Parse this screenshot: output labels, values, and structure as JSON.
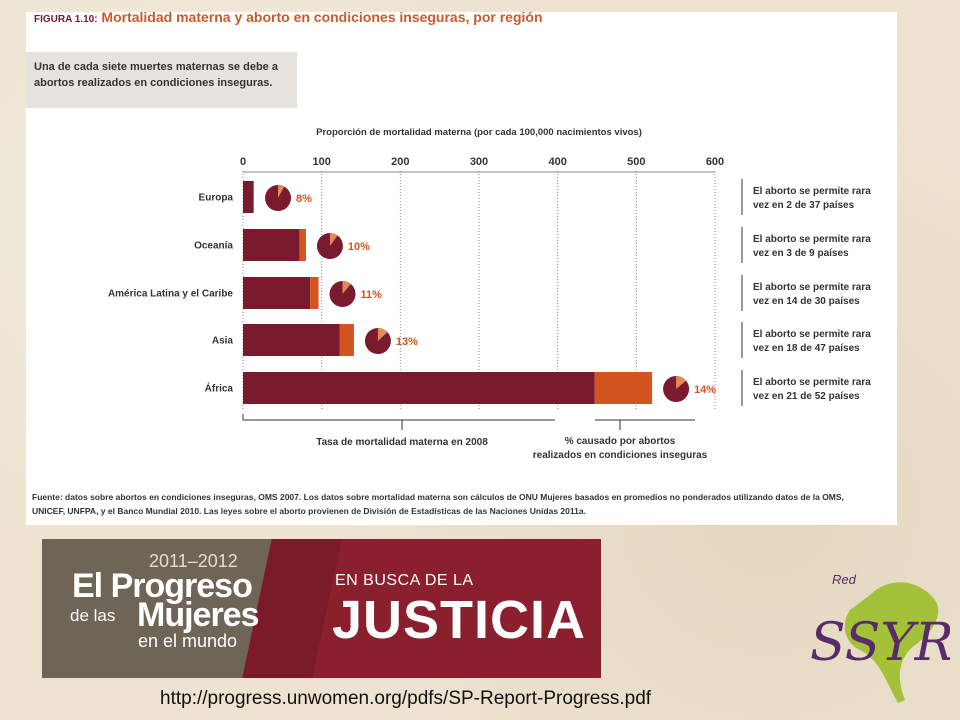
{
  "figure": {
    "number": "FIGURA 1.10:",
    "title": "Mortalidad materna y aborto en condiciones inseguras, por región",
    "subtitle": "Una de cada siete muertes maternas se debe a abortos realizados en condiciones inseguras.",
    "footnote": "Fuente: datos sobre abortos en condiciones inseguras, OMS 2007. Los datos sobre mortalidad materna son cálculos de ONU Mujeres basados en promedios no ponderados utilizando datos de la OMS, UNICEF, UNFPA, y el Banco Mundial 2010. Las leyes sobre el aborto provienen de División de Estadísticas de las Naciones Unidas 2011a."
  },
  "colors": {
    "mmr": "#7a1a2e",
    "abortion": "#d4541f",
    "pie_rest": "#7a1a2e",
    "pie_slice": "#e08a5c",
    "pct_text": "#d4541f"
  },
  "chart_data": {
    "type": "bar",
    "orientation": "horizontal",
    "stacked": true,
    "title": "Proporción de mortalidad materna (por cada 100,000 nacimientos vivos)",
    "xlim": [
      0,
      600
    ],
    "xticks": [
      "0",
      "100",
      "200",
      "300",
      "400",
      "500",
      "600"
    ],
    "categories": [
      "Europa",
      "Oceanía",
      "América Latina y el Caribe",
      "Asia",
      "África"
    ],
    "series": [
      {
        "name": "Tasa de mortalidad materna en 2008",
        "values": [
          14,
          80,
          96,
          141,
          520
        ]
      },
      {
        "name": "% causado por abortos realizados en condiciones inseguras",
        "values": [
          8,
          10,
          11,
          13,
          14
        ]
      }
    ],
    "percent_labels": [
      "8%",
      "10%",
      "11%",
      "13%",
      "14%"
    ],
    "annotations": [
      "El aborto se permite rara vez en 2 de 37 países",
      "El aborto se permite rara vez en 3 de 9 países",
      "El aborto se permite rara vez en 14 de 30 países",
      "El aborto se permite rara vez en 18 de 47 países",
      "El aborto se permite rara vez en 21 de 52 países"
    ],
    "bottom_labels": {
      "left": "Tasa de mortalidad materna en 2008",
      "right": "% causado por abortos realizados en condiciones inseguras"
    },
    "grid": "dotted vertical"
  },
  "banner": {
    "year": "2011–2012",
    "line1": "El Progreso",
    "line2a": "de las",
    "line2b": "Mujeres",
    "line3": "en el mundo",
    "sub": "EN BUSCA DE LA",
    "main": "JUSTICIA"
  },
  "logo": {
    "red": "Red",
    "ssyr": "SSYR"
  },
  "url": "http://progress.unwomen.org/pdfs/SP-Report-Progress.pdf"
}
